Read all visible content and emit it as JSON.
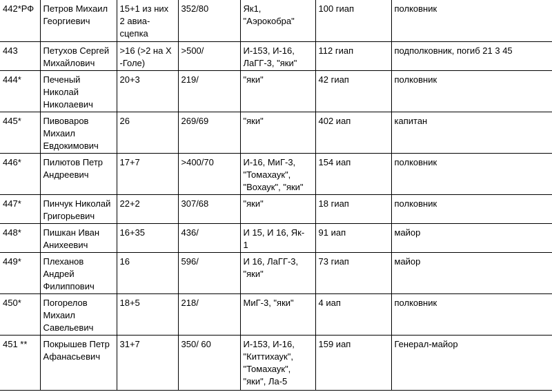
{
  "rows": [
    [
      "442*РФ",
      "Петров Михаил\nГеоргиевич",
      "15+1 из них\n2 авиа-\nсцепка",
      "352/80",
      "Як1,\n\"Аэрокобра\"",
      "100 гиап",
      "полковник"
    ],
    [
      "443",
      "Петухов Сергей\nМихайлович",
      ">16 (>2 на Х\n-Голе)",
      ">500/",
      "И-153, И-16,\nЛаГГ-3, \"яки\"",
      "112 гиап",
      "подполковник, погиб 21 3 45"
    ],
    [
      "444*",
      "Печеный\nНиколай\nНиколаевич",
      "20+3",
      "219/",
      "\"яки\"",
      "42 гиап",
      "полковник"
    ],
    [
      "445*",
      "Пивоваров\nМихаил\nЕвдокимович",
      "26",
      "269/69",
      "\"яки\"",
      "402 иап",
      "капитан"
    ],
    [
      "446*",
      "Пилютов Петр\nАндреевич",
      "17+7",
      ">400/70",
      "И-16, МиГ-3,\n\"Томахаук\",\n\"Вохаук\", \"яки\"",
      "154 иап",
      "полковник"
    ],
    [
      "447*",
      "Пинчук Николай\nГригорьевич",
      "22+2",
      "307/68",
      "\"яки\"",
      "18 гиап",
      "полковник"
    ],
    [
      "448*",
      "Пишкан Иван\nАнихеевич",
      "16+35",
      "436/",
      "И 15, И 16, Як-\n1",
      "91 иап",
      "майор"
    ],
    [
      "449*",
      "Плеханов\nАндрей\nФилиппович",
      "16",
      "596/",
      "И 16, ЛаГГ-3,\n\"яки\"",
      "73 гиап",
      "майор"
    ],
    [
      "450*",
      "Погорелов\nМихаил\nСавельевич",
      "18+5",
      "218/",
      "МиГ-3, \"яки\"",
      "4 иап",
      "полковник"
    ],
    [
      "451 **",
      "Покрышев Петр\nАфанасьевич",
      "31+7",
      "350/ 60",
      "И-153, И-16,\n\"Киттихаук\",\n\"Томахаук\",\n\"яки\", Ла-5",
      "159 иап",
      "Генерал-майор"
    ]
  ]
}
